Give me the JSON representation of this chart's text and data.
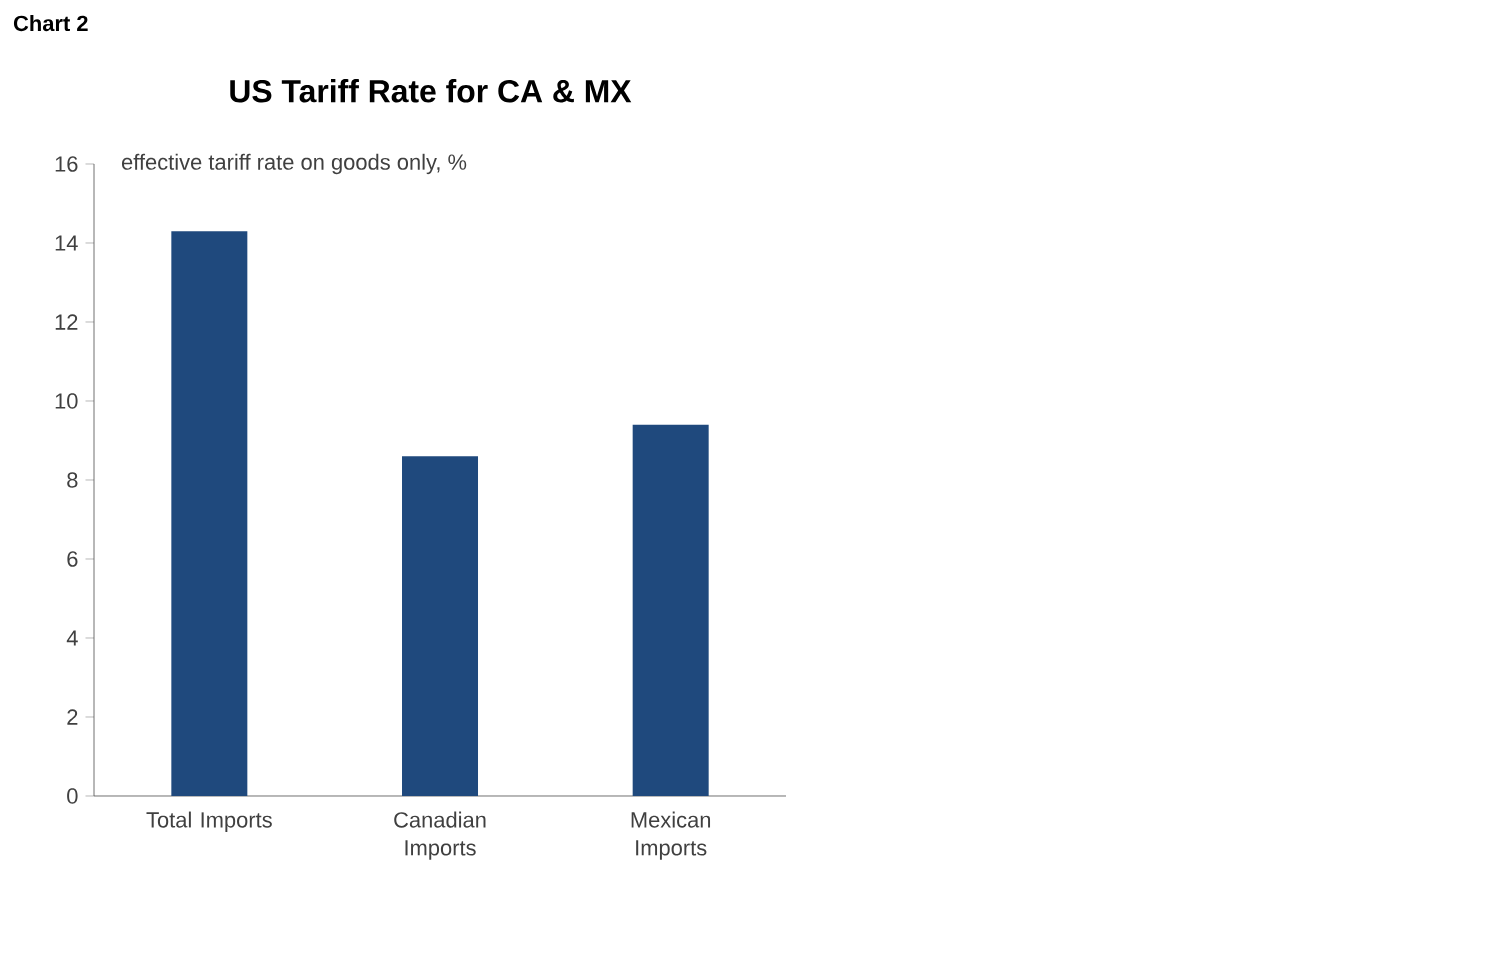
{
  "chart_data": {
    "type": "bar",
    "title": "US Tariff Rate for CA & MX",
    "ylabel": "effective tariff rate on goods only, %",
    "annotations": [
      "Chart 2"
    ],
    "categories": [
      "Total Imports",
      "Canadian Imports",
      "Mexican Imports"
    ],
    "values": [
      14.3,
      8.6,
      9.4
    ],
    "color": "#1f497d",
    "ylim": [
      0,
      16
    ],
    "yticks": [
      0,
      2,
      4,
      6,
      8,
      10,
      12,
      14,
      16
    ],
    "grid": false
  }
}
